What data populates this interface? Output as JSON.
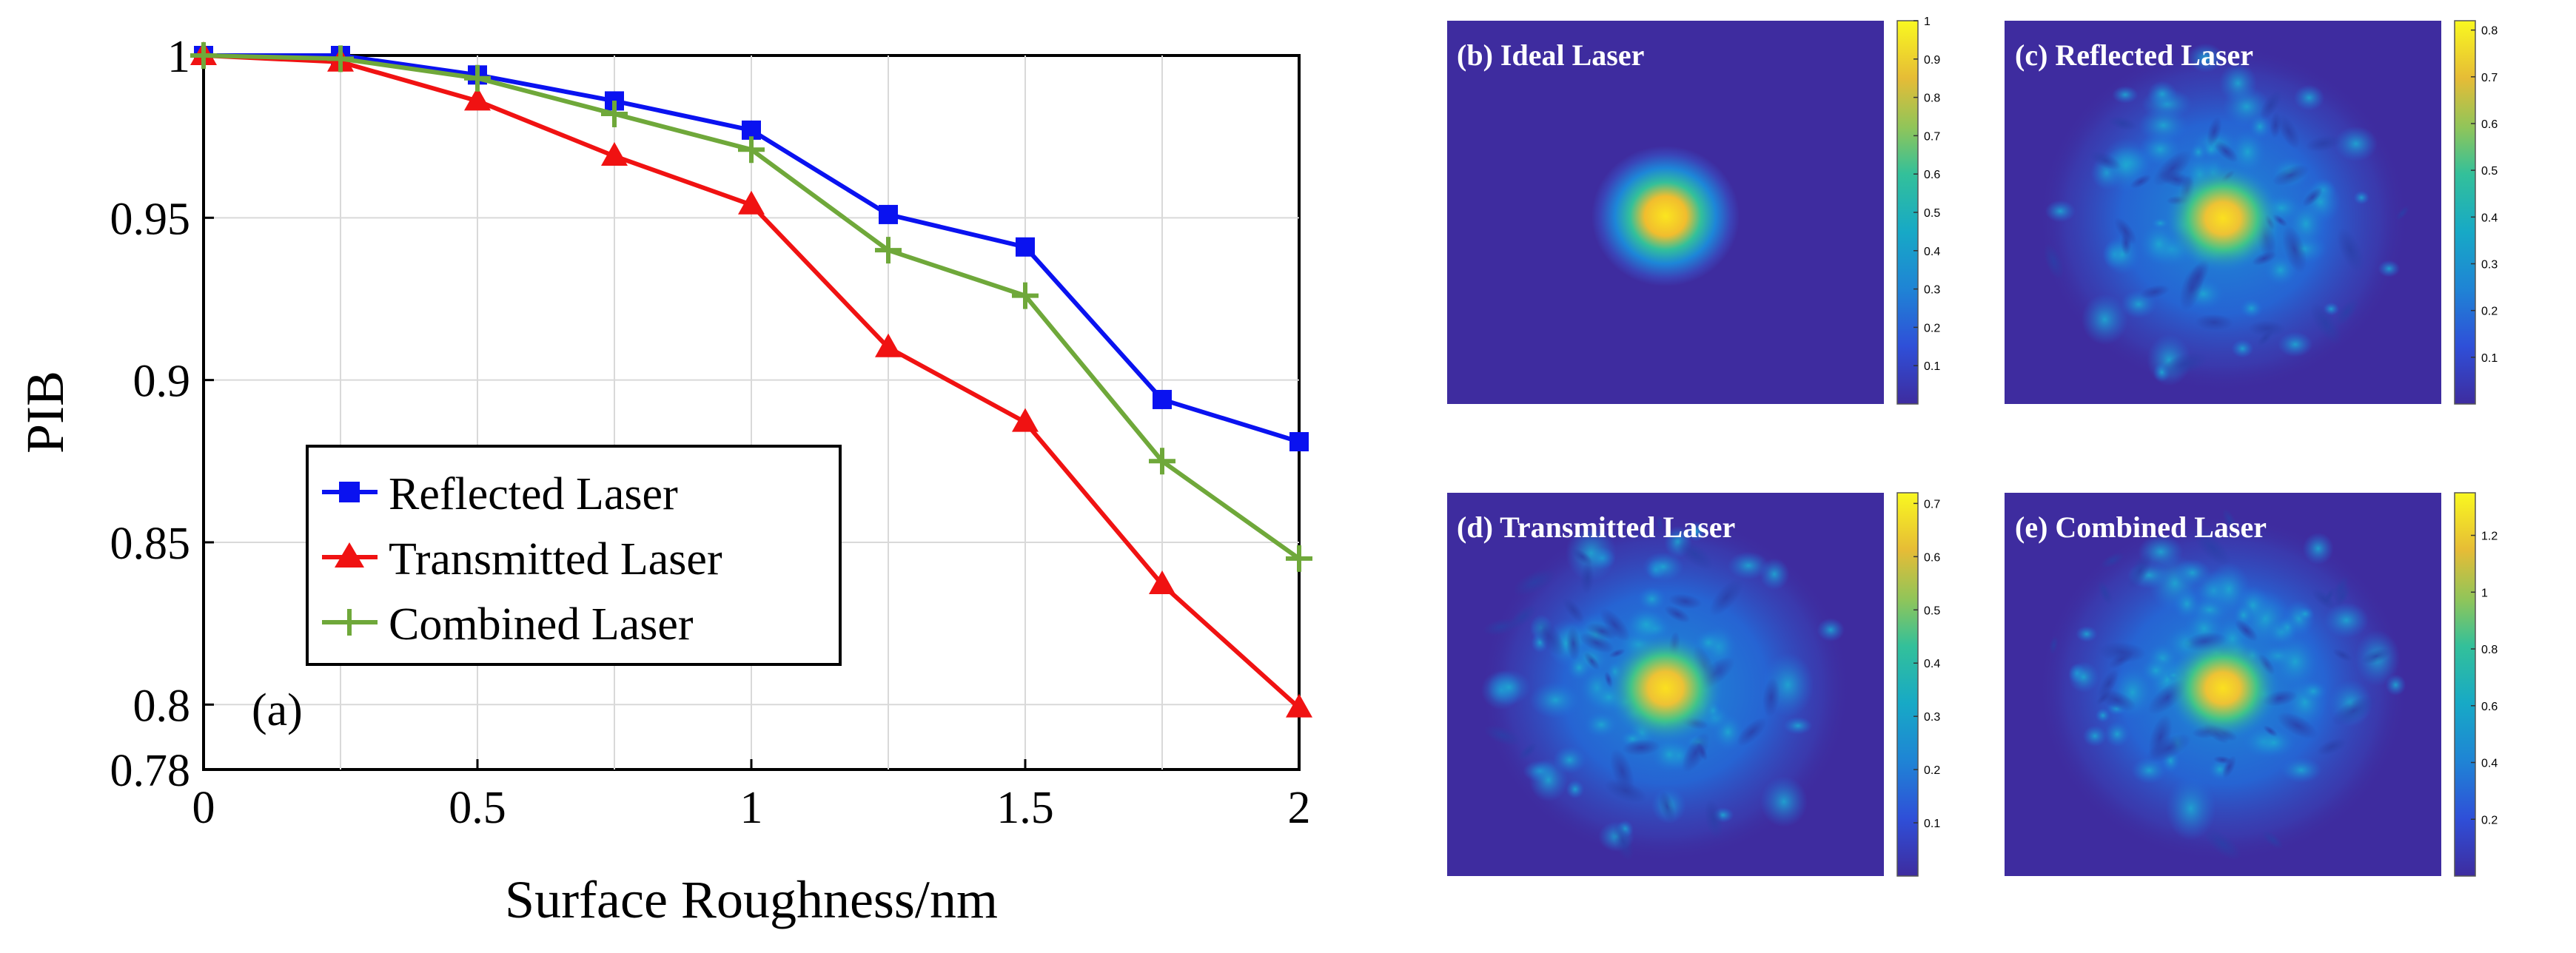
{
  "chart_data": [
    {
      "type": "line",
      "panel_label": "(a)",
      "xlabel": "Surface Roughness/nm",
      "ylabel": "PIB",
      "xlim": [
        0,
        2
      ],
      "ylim": [
        0.78,
        1.0
      ],
      "xticks": [
        0,
        0.5,
        1,
        1.5,
        2
      ],
      "xtick_labels": [
        "0",
        "0.5",
        "1",
        "1.5",
        "2"
      ],
      "yticks": [
        0.78,
        0.8,
        0.85,
        0.9,
        0.95,
        1.0
      ],
      "ytick_labels": [
        "0.78",
        "0.8",
        "0.85",
        "0.9",
        "0.95",
        "1"
      ],
      "grid": true,
      "legend_position": "center-left",
      "x": [
        0,
        0.25,
        0.5,
        0.75,
        1.0,
        1.25,
        1.5,
        1.75,
        2.0
      ],
      "series": [
        {
          "name": "Reflected Laser",
          "color": "#0a12f0",
          "marker": "square",
          "values": [
            1.0,
            1.0,
            0.994,
            0.986,
            0.977,
            0.951,
            0.941,
            0.894,
            0.881
          ]
        },
        {
          "name": "Transmitted Laser",
          "color": "#f01212",
          "marker": "triangle",
          "values": [
            1.0,
            0.998,
            0.986,
            0.969,
            0.954,
            0.91,
            0.887,
            0.837,
            0.799
          ]
        },
        {
          "name": "Combined Laser",
          "color": "#6fa83a",
          "marker": "plus",
          "values": [
            1.0,
            0.999,
            0.993,
            0.982,
            0.971,
            0.94,
            0.926,
            0.875,
            0.845
          ]
        }
      ]
    },
    {
      "type": "heatmap",
      "title": "(b) Ideal Laser",
      "pattern": "gaussian",
      "peak": 1.0,
      "colorbar_ticks": [
        0.1,
        0.2,
        0.3,
        0.4,
        0.5,
        0.6,
        0.7,
        0.8,
        0.9,
        1
      ],
      "colorbar_labels": [
        "0.1",
        "0.2",
        "0.3",
        "0.4",
        "0.5",
        "0.6",
        "0.7",
        "0.8",
        "0.9",
        "1"
      ],
      "cmin": 0,
      "cmax": 1.0
    },
    {
      "type": "heatmap",
      "title": "(c) Reflected Laser",
      "pattern": "speckle",
      "peak": 0.8,
      "colorbar_ticks": [
        0.1,
        0.2,
        0.3,
        0.4,
        0.5,
        0.6,
        0.7,
        0.8
      ],
      "colorbar_labels": [
        "0.1",
        "0.2",
        "0.3",
        "0.4",
        "0.5",
        "0.6",
        "0.7",
        "0.8"
      ],
      "cmin": 0,
      "cmax": 0.82
    },
    {
      "type": "heatmap",
      "title": "(d) Transmitted Laser",
      "pattern": "speckle",
      "peak": 0.7,
      "colorbar_ticks": [
        0.1,
        0.2,
        0.3,
        0.4,
        0.5,
        0.6,
        0.7
      ],
      "colorbar_labels": [
        "0.1",
        "0.2",
        "0.3",
        "0.4",
        "0.5",
        "0.6",
        "0.7"
      ],
      "cmin": 0,
      "cmax": 0.72
    },
    {
      "type": "heatmap",
      "title": "(e) Combined Laser",
      "pattern": "speckle",
      "peak": 1.3,
      "colorbar_ticks": [
        0.2,
        0.4,
        0.6,
        0.8,
        1,
        1.2
      ],
      "colorbar_labels": [
        "0.2",
        "0.4",
        "0.6",
        "0.8",
        "1",
        "1.2"
      ],
      "cmin": 0,
      "cmax": 1.35
    }
  ]
}
